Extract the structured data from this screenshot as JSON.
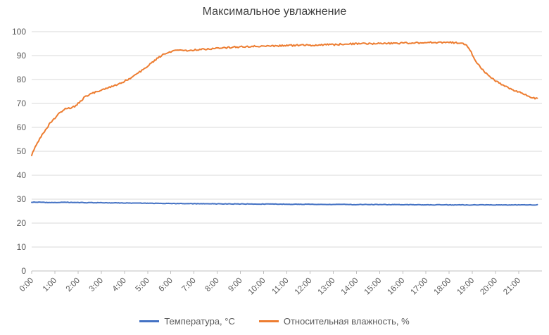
{
  "chart_data": {
    "type": "line",
    "title": "Максимальное увлажнение",
    "xlabel": "",
    "ylabel": "",
    "xlim": [
      0,
      22
    ],
    "ylim": [
      0,
      100
    ],
    "y_ticks": [
      0,
      10,
      20,
      30,
      40,
      50,
      60,
      70,
      80,
      90,
      100
    ],
    "x_ticks_hours": [
      0,
      1,
      2,
      3,
      4,
      5,
      6,
      7,
      8,
      9,
      10,
      11,
      12,
      13,
      14,
      15,
      16,
      17,
      18,
      19,
      20,
      21
    ],
    "x_tick_labels": [
      "0:00",
      "1:00",
      "2:00",
      "3:00",
      "4:00",
      "5:00",
      "6:00",
      "7:00",
      "8:00",
      "9:00",
      "10:00",
      "11:00",
      "12:00",
      "13:00",
      "14:00",
      "15:00",
      "16:00",
      "17:00",
      "18:00",
      "19:00",
      "20:00",
      "21:00"
    ],
    "grid": "horizontal",
    "legend_position": "bottom",
    "colors": {
      "gridline": "#D9D9D9",
      "axis": "#BFBFBF",
      "tick_text": "#595959",
      "title_text": "#404040"
    },
    "series": [
      {
        "name": "Температура, °C",
        "color": "#4472C4",
        "noise": 0.1,
        "points": [
          [
            0,
            28.7
          ],
          [
            0.3,
            28.8
          ],
          [
            0.6,
            28.6
          ],
          [
            1,
            28.6
          ],
          [
            1.5,
            28.7
          ],
          [
            2,
            28.6
          ],
          [
            2.5,
            28.55
          ],
          [
            3,
            28.5
          ],
          [
            3.5,
            28.45
          ],
          [
            4,
            28.4
          ],
          [
            4.5,
            28.35
          ],
          [
            5,
            28.3
          ],
          [
            6,
            28.2
          ],
          [
            7,
            28.1
          ],
          [
            8,
            28.05
          ],
          [
            9,
            28
          ],
          [
            10,
            27.95
          ],
          [
            11,
            27.9
          ],
          [
            12,
            27.85
          ],
          [
            13,
            27.8
          ],
          [
            14,
            27.75
          ],
          [
            15,
            27.75
          ],
          [
            16,
            27.7
          ],
          [
            17,
            27.65
          ],
          [
            18,
            27.6
          ],
          [
            19,
            27.6
          ],
          [
            20,
            27.6
          ],
          [
            21,
            27.6
          ],
          [
            21.8,
            27.65
          ]
        ]
      },
      {
        "name": "Относительная влажность, %",
        "color": "#ED7D31",
        "noise": 0.35,
        "points": [
          [
            0,
            48.5
          ],
          [
            0.08,
            50.5
          ],
          [
            0.17,
            52.2
          ],
          [
            0.25,
            53.6
          ],
          [
            0.33,
            55
          ],
          [
            0.5,
            57.6
          ],
          [
            0.67,
            60
          ],
          [
            0.83,
            62.2
          ],
          [
            1,
            64
          ],
          [
            1.17,
            65.6
          ],
          [
            1.33,
            67
          ],
          [
            1.5,
            68
          ],
          [
            1.67,
            68.2
          ],
          [
            1.83,
            68.7
          ],
          [
            2,
            70
          ],
          [
            2.17,
            71.6
          ],
          [
            2.33,
            73
          ],
          [
            2.5,
            73.8
          ],
          [
            2.75,
            74.7
          ],
          [
            3,
            75.4
          ],
          [
            3.25,
            76.4
          ],
          [
            3.5,
            77.2
          ],
          [
            3.75,
            78.2
          ],
          [
            4,
            79.3
          ],
          [
            4.25,
            80.6
          ],
          [
            4.5,
            82
          ],
          [
            4.75,
            83.8
          ],
          [
            5,
            85.6
          ],
          [
            5.25,
            87.6
          ],
          [
            5.5,
            89.4
          ],
          [
            5.75,
            90.8
          ],
          [
            6,
            91.6
          ],
          [
            6.2,
            92
          ],
          [
            6.5,
            92.1
          ],
          [
            7,
            92.3
          ],
          [
            7.5,
            92.7
          ],
          [
            8,
            93.1
          ],
          [
            8.5,
            93.4
          ],
          [
            9,
            93.7
          ],
          [
            9.5,
            93.9
          ],
          [
            10,
            94
          ],
          [
            10.5,
            94.1
          ],
          [
            11,
            94.2
          ],
          [
            11.5,
            94.3
          ],
          [
            12,
            94.4
          ],
          [
            12.5,
            94.5
          ],
          [
            13,
            94.6
          ],
          [
            13.5,
            94.8
          ],
          [
            14,
            94.9
          ],
          [
            14.5,
            95
          ],
          [
            15,
            95
          ],
          [
            15.5,
            95.1
          ],
          [
            16,
            95.2
          ],
          [
            16.5,
            95.3
          ],
          [
            17,
            95.4
          ],
          [
            17.5,
            95.5
          ],
          [
            18,
            95.5
          ],
          [
            18.3,
            95.4
          ],
          [
            18.6,
            95.2
          ],
          [
            18.75,
            94.3
          ],
          [
            18.9,
            92.3
          ],
          [
            19,
            90.3
          ],
          [
            19.1,
            88.3
          ],
          [
            19.25,
            86.3
          ],
          [
            19.4,
            84.5
          ],
          [
            19.5,
            83.4
          ],
          [
            19.75,
            81.4
          ],
          [
            20,
            79.4
          ],
          [
            20.25,
            77.9
          ],
          [
            20.5,
            76.7
          ],
          [
            20.75,
            75.7
          ],
          [
            21,
            74.7
          ],
          [
            21.25,
            73.7
          ],
          [
            21.5,
            72.7
          ],
          [
            21.65,
            72.3
          ],
          [
            21.8,
            72
          ]
        ]
      }
    ]
  }
}
